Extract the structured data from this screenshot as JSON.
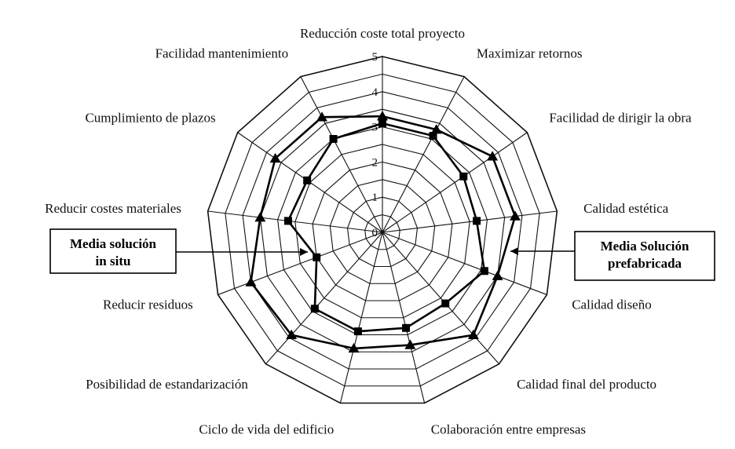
{
  "chart_data": {
    "type": "radar",
    "title": "",
    "categories": [
      "Reducción coste total proyecto",
      "Maximizar retornos",
      "Facilidad de dirigir la obra",
      "Calidad estética",
      "Calidad diseño",
      "Calidad final del producto",
      "Colaboración entre empresas",
      "Ciclo de vida del edificio",
      "Posibilidad de estandarización",
      "Reducir residuos",
      "Reducir costes materiales",
      "Cumplimiento de plazos",
      "Facilidad mantenimiento"
    ],
    "ticks": [
      "0",
      "1",
      "2",
      "3",
      "4",
      "5"
    ],
    "rmax": 5,
    "grid": true,
    "series": [
      {
        "name": "Media Solución prefabricada",
        "marker": "triangle",
        "values": [
          3.3,
          3.3,
          3.8,
          3.8,
          3.5,
          3.9,
          3.3,
          3.4,
          3.9,
          4.0,
          3.5,
          3.7,
          3.7
        ]
      },
      {
        "name": "Media solución in situ",
        "marker": "square",
        "values": [
          3.1,
          3.1,
          2.8,
          2.7,
          3.1,
          2.7,
          2.8,
          2.9,
          2.9,
          2.0,
          2.7,
          2.6,
          3.0
        ]
      }
    ],
    "legend": [
      {
        "text": "Media solución",
        "text2": "in situ",
        "series": 1
      },
      {
        "text": "Media Solución",
        "text2": "prefabricada",
        "series": 0
      }
    ]
  }
}
